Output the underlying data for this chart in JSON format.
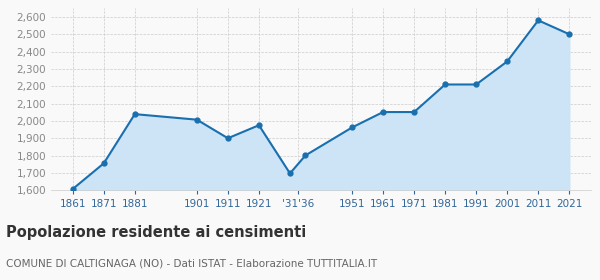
{
  "years": [
    1861,
    1871,
    1881,
    1901,
    1911,
    1921,
    1931,
    1936,
    1951,
    1961,
    1971,
    1981,
    1991,
    2001,
    2011,
    2021
  ],
  "population": [
    1608,
    1756,
    2040,
    2008,
    1901,
    1976,
    1698,
    1802,
    1963,
    2052,
    2052,
    2211,
    2211,
    2344,
    2581,
    2501
  ],
  "x_tick_positions": [
    1861,
    1871,
    1881,
    1901,
    1911,
    1921,
    1933.5,
    1951,
    1961,
    1971,
    1981,
    1991,
    2001,
    2011,
    2021
  ],
  "x_tick_labels": [
    "1861",
    "1871",
    "1881",
    "1901",
    "1911",
    "1921",
    "'31'36",
    "1951",
    "1961",
    "1971",
    "1981",
    "1991",
    "2001",
    "2011",
    "2021"
  ],
  "ylim": [
    1600,
    2650
  ],
  "yticks": [
    1600,
    1700,
    1800,
    1900,
    2000,
    2100,
    2200,
    2300,
    2400,
    2500,
    2600
  ],
  "xlim_left": 1854,
  "xlim_right": 2028,
  "line_color": "#1a6faf",
  "fill_color": "#cce4f5",
  "marker_color": "#1a6faf",
  "grid_color": "#cccccc",
  "background_color": "#f9f9f9",
  "title": "Popolazione residente ai censimenti",
  "subtitle": "COMUNE DI CALTIGNAGA (NO) - Dati ISTAT - Elaborazione TUTTITALIA.IT",
  "title_fontsize": 10.5,
  "subtitle_fontsize": 7.5,
  "tick_fontsize": 7.5,
  "ytick_color": "#888888",
  "xtick_color": "#336699"
}
